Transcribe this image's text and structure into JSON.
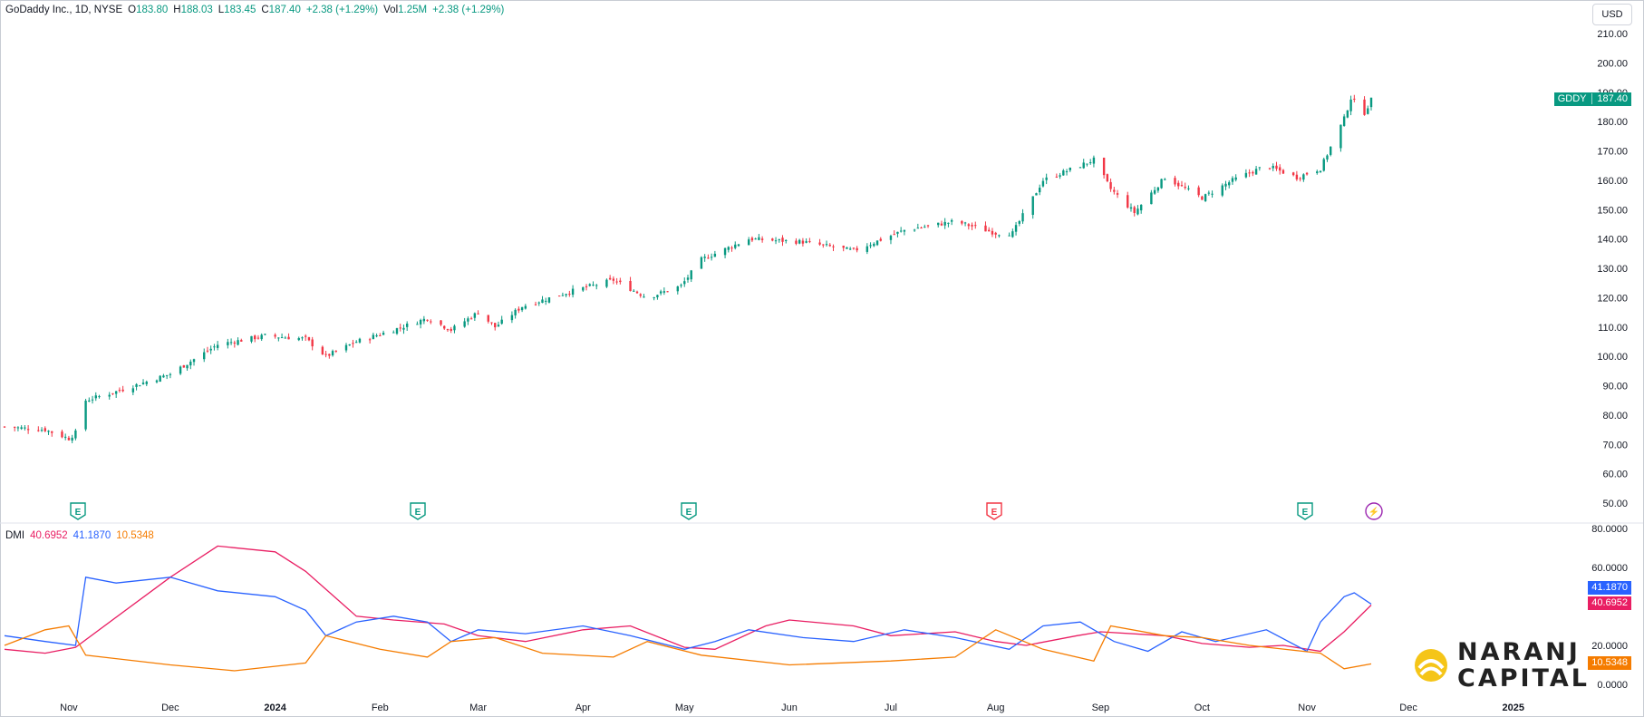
{
  "header": {
    "symbol_desc": "GoDaddy Inc., 1D, NYSE",
    "open_label": "O",
    "open": "183.80",
    "high_label": "H",
    "high": "188.03",
    "low_label": "L",
    "low": "183.45",
    "close_label": "C",
    "close": "187.40",
    "change": "+2.38 (+1.29%)",
    "vol_label": "Vol",
    "vol": "1.25M",
    "vol_change": "+2.38 (+1.29%)"
  },
  "currency": "USD",
  "price_tag": {
    "symbol": "GDDY",
    "value": "187.40"
  },
  "dmi": {
    "label": "DMI",
    "adx": "40.6952",
    "plus_di": "41.1870",
    "minus_di": "10.5348"
  },
  "colors": {
    "up": "#089981",
    "down": "#f23645",
    "adx": "#e91e63",
    "plus_di": "#2962ff",
    "minus_di": "#f57c00",
    "event_earnings": "#089981",
    "event_earnings_down": "#f23645",
    "event_flash": "#9c27b0"
  },
  "events": [
    {
      "type": "earnings",
      "icon": "earnings-icon",
      "glyph": "E",
      "date": "Nov 2023"
    },
    {
      "type": "earnings",
      "icon": "earnings-icon",
      "glyph": "E",
      "date": "Feb 2024"
    },
    {
      "type": "earnings",
      "icon": "earnings-icon",
      "glyph": "E",
      "date": "May 2024"
    },
    {
      "type": "earnings_miss",
      "icon": "earnings-icon",
      "glyph": "E",
      "date": "Aug 2024"
    },
    {
      "type": "earnings",
      "icon": "earnings-icon",
      "glyph": "E",
      "date": "Nov 2024"
    },
    {
      "type": "flash",
      "icon": "lightning-icon",
      "glyph": "⚡",
      "date": "Nov 2024"
    }
  ],
  "branding": {
    "line1": "NARANJ",
    "line2": "CAPITAL"
  },
  "chart_data": [
    {
      "type": "candlestick",
      "title": "GoDaddy Inc., 1D, NYSE",
      "x_labels": [
        "Nov",
        "Dec",
        "2024",
        "Feb",
        "Mar",
        "Apr",
        "May",
        "Jun",
        "Jul",
        "Aug",
        "Sep",
        "Oct",
        "Nov",
        "Dec",
        "2025"
      ],
      "ylim": [
        50,
        210
      ],
      "y_ticks": [
        "210.00",
        "200.00",
        "190.00",
        "180.00",
        "170.00",
        "160.00",
        "150.00",
        "140.00",
        "130.00",
        "120.00",
        "110.00",
        "100.00",
        "90.00",
        "80.00",
        "70.00",
        "60.00",
        "50.00"
      ],
      "close_anchors": [
        {
          "date": "2023-10-13",
          "close": 76
        },
        {
          "date": "2023-10-25",
          "close": 75
        },
        {
          "date": "2023-11-01",
          "close": 72
        },
        {
          "date": "2023-11-03",
          "close": 74
        },
        {
          "date": "2023-11-06",
          "close": 85
        },
        {
          "date": "2023-11-15",
          "close": 88
        },
        {
          "date": "2023-12-01",
          "close": 94
        },
        {
          "date": "2023-12-15",
          "close": 104
        },
        {
          "date": "2023-12-29",
          "close": 107
        },
        {
          "date": "2024-01-10",
          "close": 106
        },
        {
          "date": "2024-01-16",
          "close": 100
        },
        {
          "date": "2024-01-25",
          "close": 105
        },
        {
          "date": "2024-02-05",
          "close": 109
        },
        {
          "date": "2024-02-15",
          "close": 113
        },
        {
          "date": "2024-02-22",
          "close": 109
        },
        {
          "date": "2024-03-01",
          "close": 115
        },
        {
          "date": "2024-03-06",
          "close": 110
        },
        {
          "date": "2024-03-14",
          "close": 117
        },
        {
          "date": "2024-03-28",
          "close": 122
        },
        {
          "date": "2024-04-10",
          "close": 126
        },
        {
          "date": "2024-04-20",
          "close": 120
        },
        {
          "date": "2024-04-30",
          "close": 124
        },
        {
          "date": "2024-05-06",
          "close": 133
        },
        {
          "date": "2024-05-20",
          "close": 140
        },
        {
          "date": "2024-06-05",
          "close": 139
        },
        {
          "date": "2024-06-20",
          "close": 136
        },
        {
          "date": "2024-07-05",
          "close": 143
        },
        {
          "date": "2024-07-20",
          "close": 146
        },
        {
          "date": "2024-08-01",
          "close": 142
        },
        {
          "date": "2024-08-06",
          "close": 142
        },
        {
          "date": "2024-08-15",
          "close": 160
        },
        {
          "date": "2024-08-26",
          "close": 165
        },
        {
          "date": "2024-08-30",
          "close": 167
        },
        {
          "date": "2024-09-04",
          "close": 157
        },
        {
          "date": "2024-09-11",
          "close": 149
        },
        {
          "date": "2024-09-20",
          "close": 161
        },
        {
          "date": "2024-10-01",
          "close": 154
        },
        {
          "date": "2024-10-10",
          "close": 160
        },
        {
          "date": "2024-10-20",
          "close": 165
        },
        {
          "date": "2024-10-29",
          "close": 161
        },
        {
          "date": "2024-11-05",
          "close": 164
        },
        {
          "date": "2024-11-12",
          "close": 181
        },
        {
          "date": "2024-11-14",
          "close": 188
        },
        {
          "date": "2024-11-18",
          "close": 183
        },
        {
          "date": "2024-11-20",
          "close": 187.4
        }
      ]
    },
    {
      "type": "line",
      "title": "DMI",
      "ylim": [
        0,
        80
      ],
      "y_ticks": [
        "80.0000",
        "60.0000",
        "40.0000",
        "20.0000",
        "0.0000"
      ],
      "series": [
        {
          "name": "ADX",
          "color": "#e91e63",
          "points": [
            {
              "date": "2023-10-13",
              "value": 18
            },
            {
              "date": "2023-10-25",
              "value": 16
            },
            {
              "date": "2023-11-03",
              "value": 19
            },
            {
              "date": "2023-12-01",
              "value": 55
            },
            {
              "date": "2023-12-15",
              "value": 71
            },
            {
              "date": "2024-01-01",
              "value": 68
            },
            {
              "date": "2024-01-10",
              "value": 58
            },
            {
              "date": "2024-01-25",
              "value": 35
            },
            {
              "date": "2024-02-05",
              "value": 33
            },
            {
              "date": "2024-02-20",
              "value": 31
            },
            {
              "date": "2024-03-01",
              "value": 25
            },
            {
              "date": "2024-03-15",
              "value": 22
            },
            {
              "date": "2024-04-01",
              "value": 28
            },
            {
              "date": "2024-04-15",
              "value": 30
            },
            {
              "date": "2024-05-01",
              "value": 19
            },
            {
              "date": "2024-05-10",
              "value": 18
            },
            {
              "date": "2024-05-25",
              "value": 30
            },
            {
              "date": "2024-06-01",
              "value": 33
            },
            {
              "date": "2024-06-20",
              "value": 30
            },
            {
              "date": "2024-07-01",
              "value": 25
            },
            {
              "date": "2024-07-20",
              "value": 27
            },
            {
              "date": "2024-08-01",
              "value": 22
            },
            {
              "date": "2024-08-10",
              "value": 20
            },
            {
              "date": "2024-08-25",
              "value": 25
            },
            {
              "date": "2024-09-01",
              "value": 27
            },
            {
              "date": "2024-09-20",
              "value": 25
            },
            {
              "date": "2024-10-01",
              "value": 21
            },
            {
              "date": "2024-10-15",
              "value": 19
            },
            {
              "date": "2024-10-25",
              "value": 20
            },
            {
              "date": "2024-11-05",
              "value": 17
            },
            {
              "date": "2024-11-12",
              "value": 27
            },
            {
              "date": "2024-11-20",
              "value": 40.6952
            }
          ]
        },
        {
          "name": "+DI",
          "color": "#2962ff",
          "points": [
            {
              "date": "2023-10-13",
              "value": 25
            },
            {
              "date": "2023-10-25",
              "value": 22
            },
            {
              "date": "2023-11-03",
              "value": 20
            },
            {
              "date": "2023-11-06",
              "value": 55
            },
            {
              "date": "2023-11-15",
              "value": 52
            },
            {
              "date": "2023-12-01",
              "value": 55
            },
            {
              "date": "2023-12-15",
              "value": 48
            },
            {
              "date": "2024-01-01",
              "value": 45
            },
            {
              "date": "2024-01-10",
              "value": 38
            },
            {
              "date": "2024-01-16",
              "value": 25
            },
            {
              "date": "2024-01-25",
              "value": 32
            },
            {
              "date": "2024-02-05",
              "value": 35
            },
            {
              "date": "2024-02-15",
              "value": 32
            },
            {
              "date": "2024-02-22",
              "value": 22
            },
            {
              "date": "2024-03-01",
              "value": 28
            },
            {
              "date": "2024-03-15",
              "value": 26
            },
            {
              "date": "2024-04-01",
              "value": 30
            },
            {
              "date": "2024-04-15",
              "value": 25
            },
            {
              "date": "2024-05-01",
              "value": 18
            },
            {
              "date": "2024-05-10",
              "value": 22
            },
            {
              "date": "2024-05-20",
              "value": 28
            },
            {
              "date": "2024-06-05",
              "value": 24
            },
            {
              "date": "2024-06-20",
              "value": 22
            },
            {
              "date": "2024-07-05",
              "value": 28
            },
            {
              "date": "2024-07-20",
              "value": 24
            },
            {
              "date": "2024-08-05",
              "value": 18
            },
            {
              "date": "2024-08-15",
              "value": 30
            },
            {
              "date": "2024-08-26",
              "value": 32
            },
            {
              "date": "2024-09-05",
              "value": 22
            },
            {
              "date": "2024-09-15",
              "value": 17
            },
            {
              "date": "2024-09-25",
              "value": 27
            },
            {
              "date": "2024-10-05",
              "value": 22
            },
            {
              "date": "2024-10-20",
              "value": 28
            },
            {
              "date": "2024-11-01",
              "value": 17
            },
            {
              "date": "2024-11-05",
              "value": 32
            },
            {
              "date": "2024-11-12",
              "value": 45
            },
            {
              "date": "2024-11-15",
              "value": 47
            },
            {
              "date": "2024-11-20",
              "value": 41.187
            }
          ]
        },
        {
          "name": "-DI",
          "color": "#f57c00",
          "points": [
            {
              "date": "2023-10-13",
              "value": 20
            },
            {
              "date": "2023-10-25",
              "value": 28
            },
            {
              "date": "2023-11-01",
              "value": 30
            },
            {
              "date": "2023-11-06",
              "value": 15
            },
            {
              "date": "2023-12-01",
              "value": 10
            },
            {
              "date": "2023-12-20",
              "value": 7
            },
            {
              "date": "2024-01-10",
              "value": 11
            },
            {
              "date": "2024-01-16",
              "value": 25
            },
            {
              "date": "2024-02-01",
              "value": 18
            },
            {
              "date": "2024-02-15",
              "value": 14
            },
            {
              "date": "2024-02-22",
              "value": 22
            },
            {
              "date": "2024-03-06",
              "value": 24
            },
            {
              "date": "2024-03-20",
              "value": 16
            },
            {
              "date": "2024-04-10",
              "value": 14
            },
            {
              "date": "2024-04-20",
              "value": 22
            },
            {
              "date": "2024-05-06",
              "value": 15
            },
            {
              "date": "2024-06-01",
              "value": 10
            },
            {
              "date": "2024-07-01",
              "value": 12
            },
            {
              "date": "2024-07-20",
              "value": 14
            },
            {
              "date": "2024-08-01",
              "value": 28
            },
            {
              "date": "2024-08-15",
              "value": 18
            },
            {
              "date": "2024-08-30",
              "value": 12
            },
            {
              "date": "2024-09-04",
              "value": 30
            },
            {
              "date": "2024-09-20",
              "value": 25
            },
            {
              "date": "2024-10-01",
              "value": 24
            },
            {
              "date": "2024-10-15",
              "value": 20
            },
            {
              "date": "2024-11-05",
              "value": 16
            },
            {
              "date": "2024-11-12",
              "value": 8
            },
            {
              "date": "2024-11-20",
              "value": 10.5348
            }
          ]
        }
      ]
    }
  ]
}
